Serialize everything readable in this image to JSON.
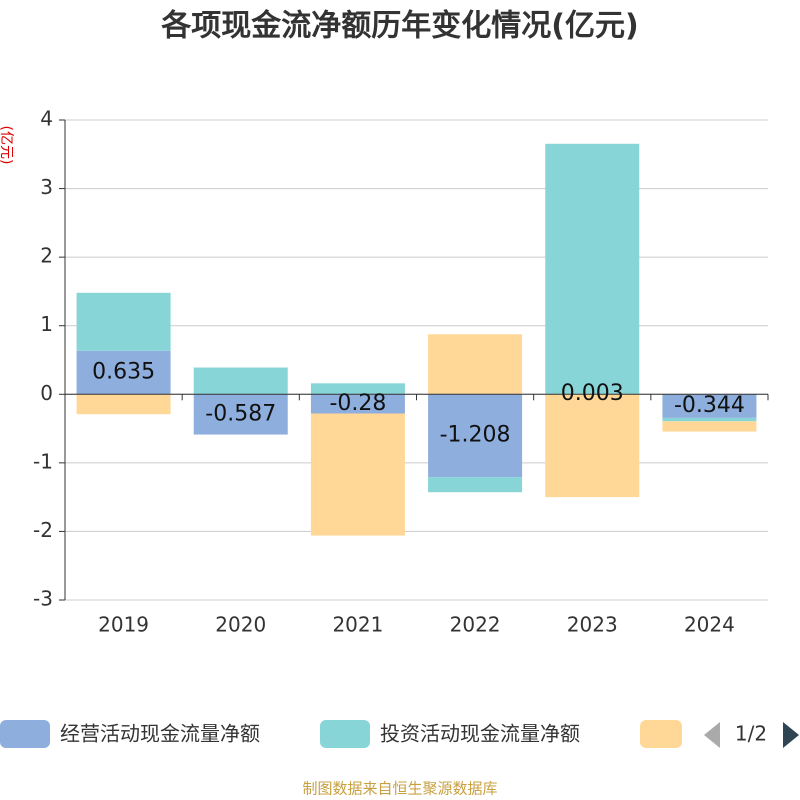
{
  "chart_data": {
    "type": "bar",
    "stacked": true,
    "title": "各项现金流净额历年变化情况(亿元)",
    "y_axis_label": "(亿元)",
    "source": "制图数据来自恒生聚源数据库",
    "legend_page": "1/2",
    "categories": [
      "2019",
      "2020",
      "2021",
      "2022",
      "2023",
      "2024"
    ],
    "series": [
      {
        "name": "经营活动现金流量净额",
        "color": "#8eaedd",
        "values": [
          0.635,
          -0.587,
          -0.28,
          -1.208,
          0.003,
          -0.344
        ],
        "labels": true
      },
      {
        "name": "投资活动现金流量净额",
        "color": "#88d5d8",
        "values": [
          0.845,
          0.39,
          0.16,
          -0.22,
          3.65,
          -0.05
        ]
      },
      {
        "color": "#ffd898",
        "values": [
          -0.29,
          null,
          -1.78,
          0.875,
          -1.5,
          -0.15
        ]
      }
    ],
    "ylim": [
      -3,
      4
    ],
    "yticks": [
      -3,
      -2,
      -1,
      0,
      1,
      2,
      3,
      4
    ],
    "grid": true
  }
}
